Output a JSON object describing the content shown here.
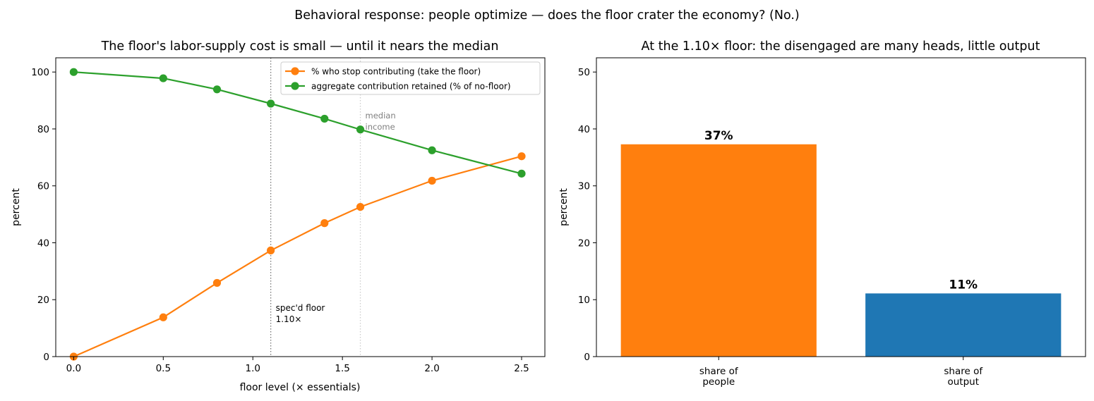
{
  "figure": {
    "suptitle": "Behavioral response: people optimize — does the floor crater the economy? (No.)"
  },
  "chart_data": [
    {
      "type": "line",
      "title": "The floor's labor-supply cost is small — until it nears the median",
      "xlabel": "floor level (× essentials)",
      "ylabel": "percent",
      "xlim": [
        -0.1,
        2.63
      ],
      "ylim": [
        0,
        105
      ],
      "xticks": [
        0.0,
        0.5,
        1.0,
        1.5,
        2.0,
        2.5
      ],
      "xtick_labels": [
        "0.0",
        "0.5",
        "1.0",
        "1.5",
        "2.0",
        "2.5"
      ],
      "yticks": [
        0,
        20,
        40,
        60,
        80,
        100
      ],
      "ytick_labels": [
        "0",
        "20",
        "40",
        "60",
        "80",
        "100"
      ],
      "grid": false,
      "legend": "top-right",
      "x": [
        0.0,
        0.5,
        0.8,
        1.1,
        1.4,
        1.6,
        2.0,
        2.5
      ],
      "series": [
        {
          "name": "% who stop contributing (take the floor)",
          "color": "#ff7f0e",
          "values": [
            0.0,
            13.8,
            25.9,
            37.3,
            46.9,
            52.6,
            61.8,
            70.4
          ]
        },
        {
          "name": "aggregate contribution retained (% of no-floor)",
          "color": "#2ca02c",
          "values": [
            100.0,
            97.8,
            93.9,
            88.9,
            83.6,
            79.8,
            72.5,
            64.3
          ]
        }
      ],
      "vlines": [
        {
          "x": 1.1,
          "style": "dotted",
          "color": "#777777",
          "label_lines": [
            "spec'd floor",
            "1.10×"
          ]
        },
        {
          "x": 1.6,
          "style": "dotted",
          "color": "#cccccc",
          "label_lines": [
            "median",
            "income"
          ],
          "label_color": "#808080"
        }
      ]
    },
    {
      "type": "bar",
      "title": "At the 1.10× floor: the disengaged are many heads, little output",
      "xlabel": "",
      "ylabel": "percent",
      "ylim": [
        0,
        52.5
      ],
      "yticks": [
        0,
        10,
        20,
        30,
        40,
        50
      ],
      "ytick_labels": [
        "0",
        "10",
        "20",
        "30",
        "40",
        "50"
      ],
      "grid": false,
      "categories": [
        [
          "share of",
          "people"
        ],
        [
          "share of",
          "output"
        ]
      ],
      "values": [
        37.3,
        11.1
      ],
      "value_labels": [
        "37%",
        "11%"
      ],
      "colors": [
        "#ff7f0e",
        "#1f77b4"
      ]
    }
  ]
}
